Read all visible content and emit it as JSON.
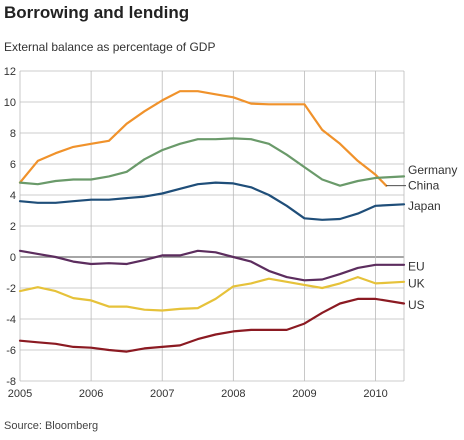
{
  "title": "Borrowing and lending",
  "subtitle": "External balance as percentage of GDP",
  "source": "Source: Bloomberg",
  "chart_data": {
    "type": "line",
    "title": "Borrowing and lending",
    "subtitle": "External balance as percentage of GDP",
    "xlabel": "",
    "ylabel": "",
    "xlim": [
      2005,
      2010.4
    ],
    "ylim": [
      -8,
      12
    ],
    "y_ticks": [
      -8,
      -6,
      -4,
      -2,
      0,
      2,
      4,
      6,
      8,
      10,
      12
    ],
    "x_ticks": [
      "2005",
      "2006",
      "2007",
      "2008",
      "2009",
      "2010"
    ],
    "x_tick_values": [
      2005,
      2006,
      2007,
      2008,
      2009,
      2010
    ],
    "grid": true,
    "legend": "direct labels at right end of lines",
    "colors": {
      "China": "#f0922b",
      "Germany": "#6a9a6a",
      "Japan": "#1f4e79",
      "EU": "#5c2d5e",
      "UK": "#e6c23a",
      "US": "#8b1a22",
      "zero_line": "#888888",
      "grid": "#bbbbbb"
    },
    "series": [
      {
        "name": "China",
        "x": [
          2005.0,
          2005.25,
          2005.5,
          2005.75,
          2006.0,
          2006.25,
          2006.5,
          2006.75,
          2007.0,
          2007.25,
          2007.5,
          2007.75,
          2008.0,
          2008.25,
          2008.5,
          2008.75,
          2009.0,
          2009.25,
          2009.5,
          2009.75,
          2010.0,
          2010.15
        ],
        "values": [
          4.8,
          6.2,
          6.7,
          7.1,
          7.3,
          7.5,
          8.6,
          9.4,
          10.1,
          10.7,
          10.7,
          10.5,
          10.3,
          9.9,
          9.85,
          9.85,
          9.85,
          8.2,
          7.3,
          6.2,
          5.3,
          4.6
        ]
      },
      {
        "name": "Germany",
        "x": [
          2005.0,
          2005.25,
          2005.5,
          2005.75,
          2006.0,
          2006.25,
          2006.5,
          2006.75,
          2007.0,
          2007.25,
          2007.5,
          2007.75,
          2008.0,
          2008.25,
          2008.5,
          2008.75,
          2009.0,
          2009.25,
          2009.5,
          2009.75,
          2010.0,
          2010.4
        ],
        "values": [
          4.8,
          4.7,
          4.9,
          5.0,
          5.0,
          5.2,
          5.5,
          6.3,
          6.9,
          7.3,
          7.6,
          7.6,
          7.65,
          7.6,
          7.3,
          6.6,
          5.8,
          5.0,
          4.6,
          4.9,
          5.1,
          5.2
        ]
      },
      {
        "name": "Japan",
        "x": [
          2005.0,
          2005.25,
          2005.5,
          2005.75,
          2006.0,
          2006.25,
          2006.5,
          2006.75,
          2007.0,
          2007.25,
          2007.5,
          2007.75,
          2008.0,
          2008.25,
          2008.5,
          2008.75,
          2009.0,
          2009.25,
          2009.5,
          2009.75,
          2010.0,
          2010.4
        ],
        "values": [
          3.6,
          3.5,
          3.5,
          3.6,
          3.7,
          3.7,
          3.8,
          3.9,
          4.1,
          4.4,
          4.7,
          4.8,
          4.75,
          4.5,
          4.0,
          3.3,
          2.5,
          2.4,
          2.45,
          2.8,
          3.3,
          3.4
        ]
      },
      {
        "name": "EU",
        "x": [
          2005.0,
          2005.25,
          2005.5,
          2005.75,
          2006.0,
          2006.25,
          2006.5,
          2006.75,
          2007.0,
          2007.25,
          2007.5,
          2007.75,
          2008.0,
          2008.25,
          2008.5,
          2008.75,
          2009.0,
          2009.25,
          2009.5,
          2009.75,
          2010.0,
          2010.4
        ],
        "values": [
          0.4,
          0.2,
          0.0,
          -0.3,
          -0.45,
          -0.4,
          -0.45,
          -0.2,
          0.1,
          0.1,
          0.4,
          0.3,
          0.0,
          -0.3,
          -0.9,
          -1.3,
          -1.5,
          -1.45,
          -1.1,
          -0.7,
          -0.5,
          -0.5
        ]
      },
      {
        "name": "UK",
        "x": [
          2005.0,
          2005.25,
          2005.5,
          2005.75,
          2006.0,
          2006.25,
          2006.5,
          2006.75,
          2007.0,
          2007.25,
          2007.5,
          2007.75,
          2008.0,
          2008.25,
          2008.5,
          2008.75,
          2009.0,
          2009.25,
          2009.5,
          2009.75,
          2010.0,
          2010.4
        ],
        "values": [
          -2.2,
          -1.95,
          -2.2,
          -2.65,
          -2.8,
          -3.2,
          -3.2,
          -3.4,
          -3.45,
          -3.35,
          -3.3,
          -2.7,
          -1.9,
          -1.7,
          -1.4,
          -1.6,
          -1.8,
          -2.0,
          -1.7,
          -1.3,
          -1.7,
          -1.6
        ]
      },
      {
        "name": "US",
        "x": [
          2005.0,
          2005.25,
          2005.5,
          2005.75,
          2006.0,
          2006.25,
          2006.5,
          2006.75,
          2007.0,
          2007.25,
          2007.5,
          2007.75,
          2008.0,
          2008.25,
          2008.5,
          2008.75,
          2009.0,
          2009.25,
          2009.5,
          2009.75,
          2010.0,
          2010.4
        ],
        "values": [
          -5.4,
          -5.5,
          -5.6,
          -5.8,
          -5.85,
          -6.0,
          -6.1,
          -5.9,
          -5.8,
          -5.7,
          -5.3,
          -5.0,
          -4.8,
          -4.7,
          -4.7,
          -4.7,
          -4.3,
          -3.6,
          -3.0,
          -2.7,
          -2.7,
          -3.0
        ]
      }
    ]
  }
}
